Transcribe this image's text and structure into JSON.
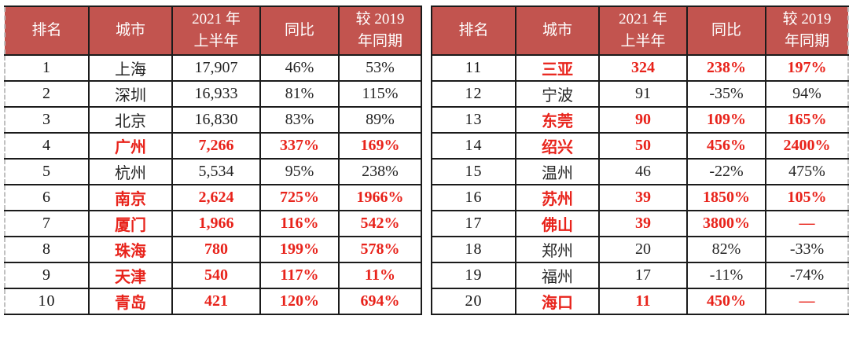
{
  "colors": {
    "header_bg": "#c2544f",
    "header_text": "#ffffff",
    "highlight_red": "#e8231b",
    "body_text": "#262626",
    "border": "#1b1b1b"
  },
  "columns": {
    "rank": "排名",
    "city": "城市",
    "h1_2021": "2021 年\n上半年",
    "yoy": "同比",
    "vs_2019": "较 2019\n年同期"
  },
  "chart_data": {
    "type": "table",
    "columns": [
      "排名",
      "城市",
      "2021 年上半年",
      "同比",
      "较 2019 年同期"
    ],
    "left_rows": [
      {
        "rank": "1",
        "city": "上海",
        "h1_2021": "17,907",
        "yoy": "46%",
        "vs_2019": "53%",
        "highlight": false
      },
      {
        "rank": "2",
        "city": "深圳",
        "h1_2021": "16,933",
        "yoy": "81%",
        "vs_2019": "115%",
        "highlight": false
      },
      {
        "rank": "3",
        "city": "北京",
        "h1_2021": "16,830",
        "yoy": "83%",
        "vs_2019": "89%",
        "highlight": false
      },
      {
        "rank": "4",
        "city": "广州",
        "h1_2021": "7,266",
        "yoy": "337%",
        "vs_2019": "169%",
        "highlight": true
      },
      {
        "rank": "5",
        "city": "杭州",
        "h1_2021": "5,534",
        "yoy": "95%",
        "vs_2019": "238%",
        "highlight": false
      },
      {
        "rank": "6",
        "city": "南京",
        "h1_2021": "2,624",
        "yoy": "725%",
        "vs_2019": "1966%",
        "highlight": true
      },
      {
        "rank": "7",
        "city": "厦门",
        "h1_2021": "1,966",
        "yoy": "116%",
        "vs_2019": "542%",
        "highlight": true
      },
      {
        "rank": "8",
        "city": "珠海",
        "h1_2021": "780",
        "yoy": "199%",
        "vs_2019": "578%",
        "highlight": true
      },
      {
        "rank": "9",
        "city": "天津",
        "h1_2021": "540",
        "yoy": "117%",
        "vs_2019": "11%",
        "highlight": true
      },
      {
        "rank": "10",
        "city": "青岛",
        "h1_2021": "421",
        "yoy": "120%",
        "vs_2019": "694%",
        "highlight": true
      }
    ],
    "right_rows": [
      {
        "rank": "11",
        "city": "三亚",
        "h1_2021": "324",
        "yoy": "238%",
        "vs_2019": "197%",
        "highlight": true
      },
      {
        "rank": "12",
        "city": "宁波",
        "h1_2021": "91",
        "yoy": "-35%",
        "vs_2019": "94%",
        "highlight": false
      },
      {
        "rank": "13",
        "city": "东莞",
        "h1_2021": "90",
        "yoy": "109%",
        "vs_2019": "165%",
        "highlight": true
      },
      {
        "rank": "14",
        "city": "绍兴",
        "h1_2021": "50",
        "yoy": "456%",
        "vs_2019": "2400%",
        "highlight": true
      },
      {
        "rank": "15",
        "city": "温州",
        "h1_2021": "46",
        "yoy": "-22%",
        "vs_2019": "475%",
        "highlight": false
      },
      {
        "rank": "16",
        "city": "苏州",
        "h1_2021": "39",
        "yoy": "1850%",
        "vs_2019": "105%",
        "highlight": true
      },
      {
        "rank": "17",
        "city": "佛山",
        "h1_2021": "39",
        "yoy": "3800%",
        "vs_2019": "—",
        "highlight": true
      },
      {
        "rank": "18",
        "city": "郑州",
        "h1_2021": "20",
        "yoy": "82%",
        "vs_2019": "-33%",
        "highlight": false
      },
      {
        "rank": "19",
        "city": "福州",
        "h1_2021": "17",
        "yoy": "-11%",
        "vs_2019": "-74%",
        "highlight": false
      },
      {
        "rank": "20",
        "city": "海口",
        "h1_2021": "11",
        "yoy": "450%",
        "vs_2019": "—",
        "highlight": true
      }
    ]
  }
}
